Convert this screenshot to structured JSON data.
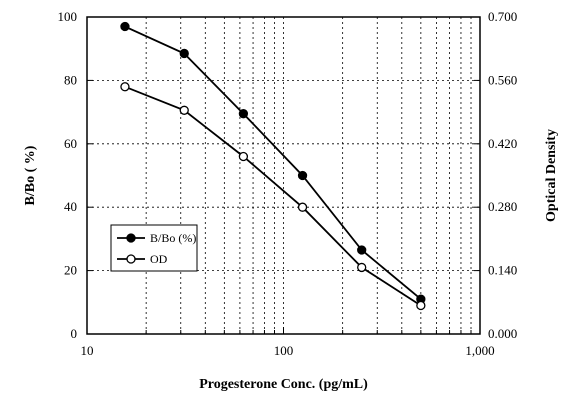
{
  "chart_data": {
    "type": "line",
    "xlabel": "Progesterone Conc. (pg/mL)",
    "ylabel_left": "B/Bo ( %)",
    "ylabel_right": "Optical Density",
    "x_scale": "log",
    "xlim": [
      10,
      1000
    ],
    "x_tick_labels": [
      "10",
      "100",
      "1,000"
    ],
    "x_ticks": [
      10,
      100,
      1000
    ],
    "ylim_left": [
      0,
      100
    ],
    "y_ticks_left": [
      0,
      20,
      40,
      60,
      80,
      100
    ],
    "y_tick_labels_left": [
      "0",
      "20",
      "40",
      "60",
      "80",
      "100"
    ],
    "ylim_right": [
      0,
      0.7
    ],
    "y_ticks_right": [
      0,
      0.14,
      0.28,
      0.42,
      0.56,
      0.7
    ],
    "y_tick_labels_right": [
      "0.000",
      "0.140",
      "0.280",
      "0.420",
      "0.560",
      "0.700"
    ],
    "grid": true,
    "legend_position": "lower-left",
    "series": [
      {
        "name": "B/Bo (%)",
        "axis": "left",
        "marker": "filled-circle",
        "color": "#000000",
        "x": [
          15.6,
          31.25,
          62.5,
          125,
          250,
          500
        ],
        "y": [
          97,
          88.5,
          69.5,
          50,
          26.5,
          11
        ]
      },
      {
        "name": "OD",
        "axis": "right",
        "marker": "open-circle",
        "color": "#000000",
        "x": [
          15.6,
          31.25,
          62.5,
          125,
          250,
          500
        ],
        "y": [
          0.546,
          0.494,
          0.392,
          0.28,
          0.147,
          0.063
        ]
      }
    ]
  }
}
